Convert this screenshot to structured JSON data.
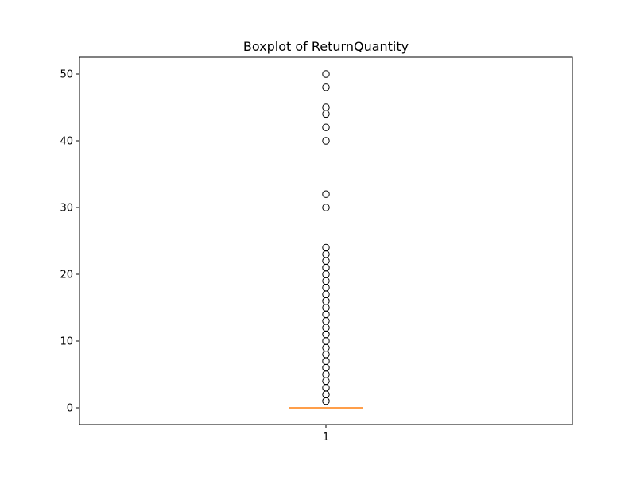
{
  "chart_data": {
    "type": "boxplot",
    "title": "Boxplot of ReturnQuantity",
    "xlabel": "",
    "ylabel": "",
    "categories": [
      "1"
    ],
    "ylim": [
      -2.5,
      52.5
    ],
    "yticks": [
      0,
      10,
      20,
      30,
      40,
      50
    ],
    "grid": false,
    "box": {
      "category": "1",
      "q1": 0,
      "median": 0,
      "q3": 0,
      "whisker_low": 0,
      "whisker_high": 0
    },
    "outliers": [
      1,
      2,
      3,
      4,
      5,
      6,
      7,
      8,
      9,
      10,
      11,
      12,
      13,
      14,
      15,
      16,
      17,
      18,
      19,
      20,
      21,
      22,
      23,
      24,
      30,
      32,
      40,
      42,
      44,
      45,
      48,
      50
    ],
    "colors": {
      "median": "#ff7f0e",
      "box": "#000000",
      "outlier_edge": "#000000"
    }
  }
}
